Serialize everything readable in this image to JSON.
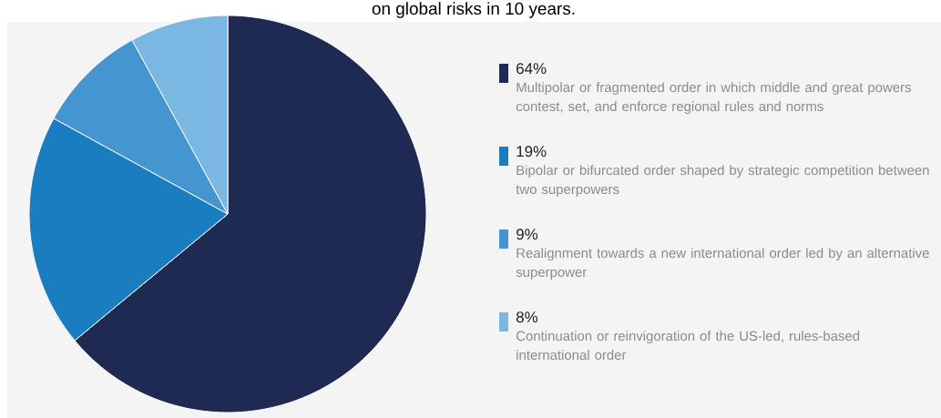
{
  "chart_data": {
    "type": "pie",
    "title": "on global risks in 10 years.",
    "categories": [
      "Multipolar or fragmented order in which middle and great powers contest, set, and enforce regional rules and norms",
      "Bipolar or bifurcated order shaped by strategic competition between two superpowers",
      "Realignment towards a new international order led by an alternative superpower",
      "Continuation or reinvigoration of the US-led, rules-based international order"
    ],
    "values": [
      64,
      19,
      9,
      8
    ],
    "colors": [
      "#1f2a52",
      "#1a7dc0",
      "#4596d0",
      "#7ab8e3"
    ],
    "value_labels": [
      "64%",
      "19%",
      "9%",
      "8%"
    ],
    "legend": "right"
  }
}
